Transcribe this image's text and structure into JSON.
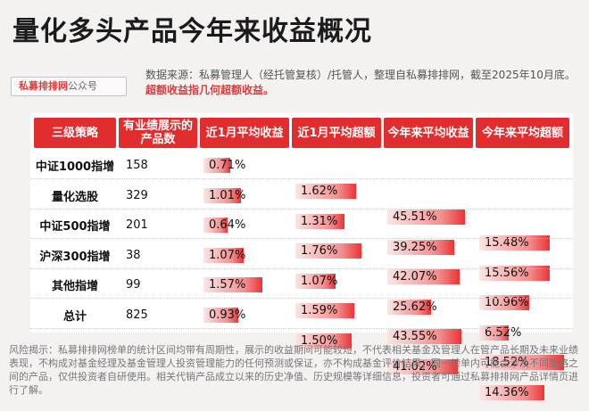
{
  "title": "量化多头产品今年来收益概况",
  "badge": {
    "brand": "私募排排网",
    "suffix": "公众号"
  },
  "source": {
    "text": "数据来源：私募管理人（经托管复核）/托管人，整理自私募排排网，截至2025年10月底。",
    "highlight": "超额收益指几何超额收益。"
  },
  "table": {
    "headers": [
      "三级策略",
      "有业绩展示的产品数",
      "近1月平均收益",
      "近1月平均超额",
      "今年来平均收益",
      "今年来平均超额"
    ],
    "rows": [
      {
        "strategy": "中证1000指增",
        "count": "158",
        "m1_return": "0.71%",
        "m1_excess": "1.62%",
        "ytd_return": "45.51%",
        "ytd_excess": "15.48%",
        "m1_return_val": 0.71,
        "m1_excess_val": 1.62,
        "ytd_return_val": 45.51,
        "ytd_excess_val": 15.48
      },
      {
        "strategy": "量化选股",
        "count": "329",
        "m1_return": "1.01%",
        "m1_excess": "1.31%",
        "ytd_return": "39.25%",
        "ytd_excess": "15.56%",
        "m1_return_val": 1.01,
        "m1_excess_val": 1.31,
        "ytd_return_val": 39.25,
        "ytd_excess_val": 15.56
      },
      {
        "strategy": "中证500指增",
        "count": "201",
        "m1_return": "0.64%",
        "m1_excess": "1.76%",
        "ytd_return": "42.07%",
        "ytd_excess": "10.96%",
        "m1_return_val": 0.64,
        "m1_excess_val": 1.76,
        "ytd_return_val": 42.07,
        "ytd_excess_val": 10.96
      },
      {
        "strategy": "沪深300指增",
        "count": "38",
        "m1_return": "1.07%",
        "m1_excess": "1.07%",
        "ytd_return": "25.62%",
        "ytd_excess": "6.52%",
        "m1_return_val": 1.07,
        "m1_excess_val": 1.07,
        "ytd_return_val": 25.62,
        "ytd_excess_val": 6.52
      },
      {
        "strategy": "其他指增",
        "count": "99",
        "m1_return": "1.57%",
        "m1_excess": "1.59%",
        "ytd_return": "43.55%",
        "ytd_excess": "18.52%",
        "m1_return_val": 1.57,
        "m1_excess_val": 1.59,
        "ytd_return_val": 43.55,
        "ytd_excess_val": 18.52
      },
      {
        "strategy": "总计",
        "count": "825",
        "m1_return": "0.93%",
        "m1_excess": "1.50%",
        "ytd_return": "41.02%",
        "ytd_excess": "14.36%",
        "m1_return_val": 0.93,
        "m1_excess_val": 1.5,
        "ytd_return_val": 41.02,
        "ytd_excess_val": 14.36
      }
    ]
  },
  "footer": "风险揭示：私募排排网榜单的统计区间均带有周期性，展示的收益期间可能较短，不代表相关基金及管理人在管产品长期及未来业绩表现，不构成对基金经理及基金管理人投资管理能力的任何预测或保证，亦不构成基金评价结果；同一榜单内可能会涉及不同策略之间的产品，仅供投资者自研使用。相关代销产品成立以来的历史净值、历史规模等详细信息，投资者可通过私募排排网产品详情页进行了解。",
  "colors": {
    "accent": "#e12d2d",
    "bar_end": "#e93535",
    "bar_start": "#fbe5e5"
  }
}
